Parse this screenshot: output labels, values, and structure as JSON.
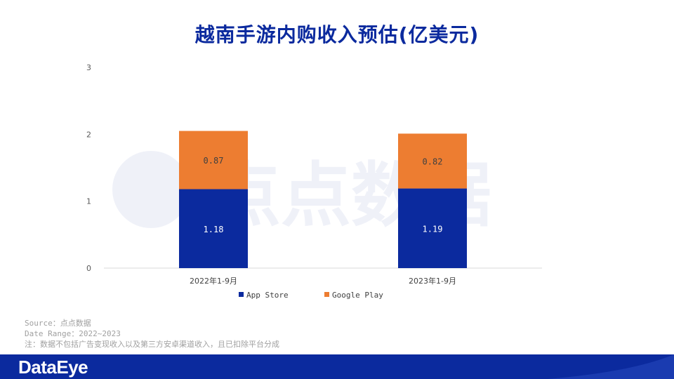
{
  "title": "越南手游内购收入预估(亿美元)",
  "watermark_text": "点点数据",
  "notes": {
    "source": "Source：点点数据",
    "date_range": "Date Range：2022~2023",
    "note": "注：数据不包括广告变现收入以及第三方安卓渠道收入，且已扣除平台分成"
  },
  "footer": {
    "logo": "DataEye"
  },
  "colors": {
    "app_store": "#0b2a9e",
    "google_play": "#ed7d31",
    "title": "#0b2a9e",
    "footer": "#0b2a9e"
  },
  "chart_data": {
    "type": "bar",
    "stacked": true,
    "title": "越南手游内购收入预估(亿美元)",
    "categories": [
      "2022年1-9月",
      "2023年1-9月"
    ],
    "series": [
      {
        "name": "App Store",
        "values": [
          1.18,
          1.19
        ],
        "labels": [
          "1.18",
          "1.19"
        ],
        "color": "#0b2a9e"
      },
      {
        "name": "Google Play",
        "values": [
          0.87,
          0.82
        ],
        "labels": [
          "0.87",
          "0.82"
        ],
        "color": "#ed7d31"
      }
    ],
    "yticks": [
      "0",
      "1",
      "2",
      "3"
    ],
    "ylim": [
      0,
      3
    ],
    "grid": false,
    "legend": "bottom"
  }
}
